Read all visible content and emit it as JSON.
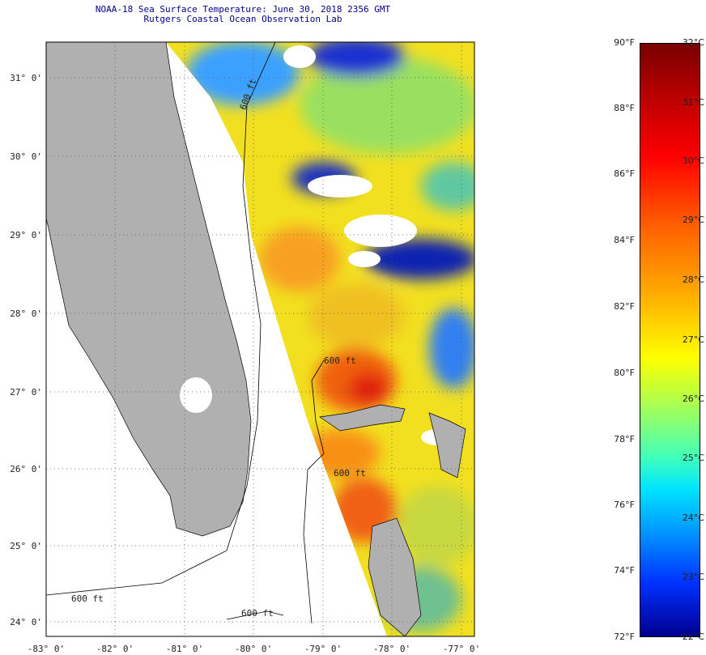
{
  "title": "NOAA-18 Sea Surface Temperature:  June 30, 2018 2356 GMT",
  "subtitle": "Rutgers Coastal Ocean Observation Lab",
  "map": {
    "lat_labels": [
      "31° 0'",
      "30° 0'",
      "29° 0'",
      "28° 0'",
      "27° 0'",
      "26° 0'",
      "25° 0'",
      "24° 0'"
    ],
    "lon_labels": [
      "-83° 0'",
      "-82° 0'",
      "-81° 0'",
      "-80° 0'",
      "-79° 0'",
      "-78° 0'",
      "-77° 0'"
    ],
    "contour_labels": [
      "600 ft",
      "600 ft",
      "600 ft",
      "600 ft",
      "600 ft"
    ],
    "land_color": "#b0b0b0"
  },
  "colorbar": {
    "fahrenheit": [
      "90°F",
      "88°F",
      "86°F",
      "84°F",
      "82°F",
      "80°F",
      "78°F",
      "76°F",
      "74°F",
      "72°F"
    ],
    "celsius": [
      "32°C",
      "31°C",
      "30°C",
      "29°C",
      "28°C",
      "27°C",
      "26°C",
      "25°C",
      "24°C",
      "23°C",
      "22°C"
    ],
    "range_f": [
      72,
      90
    ],
    "range_c": [
      22,
      32
    ]
  }
}
